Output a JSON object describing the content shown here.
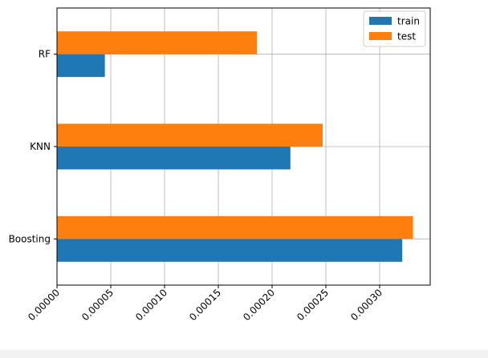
{
  "chart_data": {
    "type": "bar",
    "orientation": "horizontal",
    "categories": [
      "Boosting",
      "KNN",
      "RF"
    ],
    "series": [
      {
        "name": "train",
        "values": [
          0.000321,
          0.000217,
          4.45e-05
        ]
      },
      {
        "name": "test",
        "values": [
          0.000331,
          0.000247,
          0.000186
        ]
      }
    ],
    "xticks": [
      "0.00000",
      "0.00005",
      "0.00010",
      "0.00015",
      "0.00020",
      "0.00025",
      "0.00030"
    ],
    "xlim": [
      0,
      0.000347
    ],
    "grid": true,
    "legend_position": "top-right",
    "colors": {
      "train": "#1f77b4",
      "test": "#ff7f0e"
    },
    "title": "",
    "xlabel": "",
    "ylabel": ""
  }
}
